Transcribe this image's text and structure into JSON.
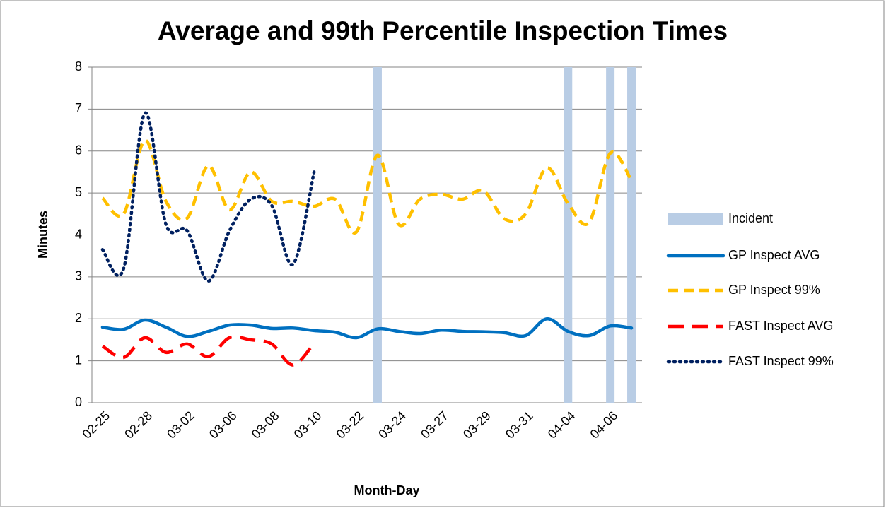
{
  "chart_data": {
    "type": "line",
    "title": "Average and 99th Percentile Inspection Times",
    "x_label": "Month-Day",
    "y_label": "Minutes",
    "categories": [
      "02-25",
      null,
      "02-28",
      null,
      "03-02",
      null,
      "03-06",
      null,
      "03-08",
      null,
      "03-10",
      null,
      "03-22",
      null,
      "03-24",
      null,
      "03-27",
      null,
      "03-29",
      null,
      "03-31",
      null,
      "04-04",
      null,
      "04-06",
      null
    ],
    "series": [
      {
        "name": "Incident",
        "color": "#b9cde5",
        "kind": "bar",
        "values": [
          0,
          0,
          0,
          0,
          0,
          0,
          0,
          0,
          0,
          0,
          0,
          0,
          0,
          8,
          0,
          0,
          0,
          0,
          0,
          0,
          0,
          0,
          8,
          0,
          8,
          8
        ]
      },
      {
        "name": "GP Inspect AVG",
        "color": "#0070c0",
        "kind": "line",
        "line_style": "solid",
        "values": [
          1.8,
          1.75,
          1.97,
          1.8,
          1.58,
          1.7,
          1.85,
          1.85,
          1.77,
          1.78,
          1.72,
          1.68,
          1.55,
          1.76,
          1.7,
          1.65,
          1.73,
          1.7,
          1.69,
          1.67,
          1.6,
          2.0,
          1.7,
          1.6,
          1.83,
          1.78
        ]
      },
      {
        "name": "GP Inspect 99%",
        "color": "#ffc000",
        "kind": "line",
        "line_style": "dash",
        "values": [
          4.88,
          4.5,
          6.25,
          4.8,
          4.4,
          5.65,
          4.6,
          5.5,
          4.8,
          4.8,
          4.68,
          4.85,
          4.07,
          5.9,
          4.25,
          4.85,
          4.97,
          4.85,
          5.05,
          4.38,
          4.5,
          5.6,
          4.75,
          4.3,
          5.95,
          5.3
        ]
      },
      {
        "name": "FAST  Inspect AVG",
        "color": "#ff0000",
        "kind": "line",
        "line_style": "longdash",
        "values": [
          1.35,
          1.08,
          1.55,
          1.2,
          1.4,
          1.1,
          1.55,
          1.5,
          1.4,
          0.9,
          1.42,
          null,
          null,
          null,
          null,
          null,
          null,
          null,
          null,
          null,
          null,
          null,
          null,
          null,
          null,
          null
        ]
      },
      {
        "name": "FAST  Inspect 99%",
        "color": "#002060",
        "kind": "line",
        "line_style": "dot",
        "values": [
          3.65,
          3.2,
          6.9,
          4.25,
          4.1,
          2.9,
          4.1,
          4.85,
          4.7,
          3.3,
          5.5,
          null,
          null,
          null,
          null,
          null,
          null,
          null,
          null,
          null,
          null,
          null,
          null,
          null,
          null,
          null
        ]
      }
    ],
    "ylim": [
      0,
      8
    ],
    "yticks": [
      0,
      1,
      2,
      3,
      4,
      5,
      6,
      7,
      8
    ],
    "grid": true,
    "legend": "right"
  }
}
